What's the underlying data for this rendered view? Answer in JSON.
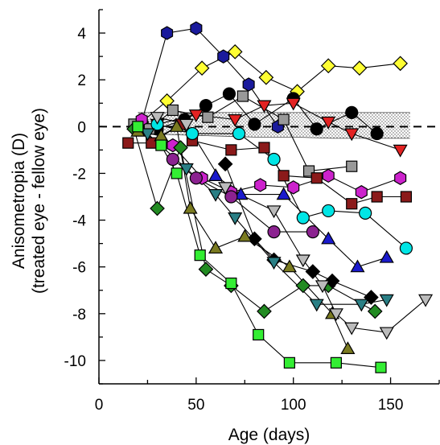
{
  "chart_data": {
    "type": "scatter",
    "title": "",
    "xlabel": "Age (days)",
    "ylabel": "Anisometropia (D)",
    "ylabel2": "(treated eye - fellow eye)",
    "xlim": [
      0,
      175
    ],
    "ylim": [
      -11,
      5
    ],
    "xticks": [
      0,
      50,
      100,
      150
    ],
    "yticks": [
      4,
      2,
      0,
      -2,
      -4,
      -6,
      -8,
      -10
    ],
    "reference_line": {
      "y": 0,
      "style": "dashed"
    },
    "shaded_band": {
      "x": [
        20,
        160
      ],
      "upper": [
        0.6,
        0.6,
        0.6,
        0.6,
        0.6,
        0.6,
        0.6,
        0.6
      ],
      "lower": [
        -0.3,
        -0.35,
        -0.4,
        -0.45,
        -0.45,
        -0.5,
        -0.5,
        -0.5
      ],
      "x_points": [
        20,
        40,
        60,
        80,
        100,
        120,
        140,
        160
      ],
      "fill": "dotted"
    },
    "grid": false,
    "legend": "none",
    "series": [
      {
        "marker": "hexagon",
        "color": "#1a1a9c",
        "x": [
          22,
          35,
          50,
          64,
          77,
          92
        ],
        "y": [
          0.2,
          4.0,
          4.2,
          3.0,
          1.8,
          0.0
        ]
      },
      {
        "marker": "diamond",
        "color": "#ffff33",
        "x": [
          22,
          35,
          53,
          70,
          86,
          102,
          118,
          134,
          155
        ],
        "y": [
          0.2,
          1.1,
          2.5,
          3.2,
          2.1,
          1.5,
          2.6,
          2.5,
          2.7
        ]
      },
      {
        "marker": "circle",
        "color": "#000000",
        "x": [
          20,
          30,
          44,
          55,
          67,
          80,
          100,
          112,
          130,
          143
        ],
        "y": [
          0.0,
          -0.1,
          0.3,
          0.9,
          1.4,
          0.1,
          1.2,
          -0.1,
          0.6,
          -0.3
        ]
      },
      {
        "marker": "square",
        "color": "#999999",
        "x": [
          18,
          26,
          38,
          56,
          74,
          95,
          108,
          130
        ],
        "y": [
          0.1,
          -0.1,
          0.7,
          0.4,
          1.3,
          0.3,
          -1.9,
          -1.7
        ]
      },
      {
        "marker": "triangle-down",
        "color": "#e32222",
        "x": [
          30,
          50,
          70,
          85,
          100,
          118,
          130,
          155
        ],
        "y": [
          0.1,
          0.5,
          0.3,
          0.9,
          1.0,
          0.2,
          -0.3,
          -1.0
        ]
      },
      {
        "marker": "square",
        "color": "#8b1a1a",
        "x": [
          15,
          27,
          42,
          48,
          68,
          85,
          95,
          112,
          130,
          143,
          158
        ],
        "y": [
          -0.7,
          -0.7,
          0.1,
          -0.6,
          -1.0,
          -0.9,
          -2.1,
          -2.2,
          -3.3,
          -3.0,
          -3.0
        ]
      },
      {
        "marker": "hexagon",
        "color": "#cc22cc",
        "x": [
          22,
          38,
          53,
          68,
          83,
          100,
          118,
          135,
          155
        ],
        "y": [
          0.3,
          -0.8,
          -2.2,
          -2.8,
          -2.5,
          -2.6,
          -2.1,
          -2.8,
          -2.2
        ]
      },
      {
        "marker": "circle",
        "color": "#00e5e5",
        "x": [
          30,
          48,
          72,
          90,
          105,
          118,
          137,
          158
        ],
        "y": [
          0.1,
          -0.3,
          -0.3,
          -1.4,
          -3.9,
          -3.6,
          -3.7,
          -5.2
        ]
      },
      {
        "marker": "triangle-up",
        "color": "#1a1acc",
        "x": [
          60,
          73,
          95,
          118,
          133,
          148
        ],
        "y": [
          -2.1,
          -2.9,
          -2.9,
          -4.8,
          -6.0,
          -5.6
        ]
      },
      {
        "marker": "circle",
        "color": "#8b2290",
        "x": [
          38,
          50,
          68,
          90,
          110
        ],
        "y": [
          -1.4,
          -2.2,
          -3.0,
          -4.5,
          -4.5
        ]
      },
      {
        "marker": "diamond",
        "color": "#228b22",
        "x": [
          18,
          30,
          42,
          55,
          68,
          85,
          105,
          118,
          142
        ],
        "y": [
          -0.1,
          -3.5,
          -0.9,
          -6.1,
          -6.8,
          -7.9,
          -6.8,
          -6.8,
          -7.9
        ]
      },
      {
        "marker": "diamond",
        "color": "#000000",
        "x": [
          65,
          80,
          90,
          110,
          120,
          140
        ],
        "y": [
          -1.6,
          -4.8,
          -5.7,
          -6.2,
          -6.6,
          -7.3
        ]
      },
      {
        "marker": "triangle-up",
        "color": "#7a7a20",
        "x": [
          20,
          32,
          40,
          47,
          60,
          75,
          98,
          120,
          128
        ],
        "y": [
          -0.2,
          -0.4,
          0.0,
          -3.5,
          -5.2,
          -4.7,
          -6.0,
          -8.0,
          -9.5
        ]
      },
      {
        "marker": "triangle-down",
        "color": "#2a7f85",
        "x": [
          25,
          45,
          60,
          70,
          90,
          112,
          135,
          148
        ],
        "y": [
          -0.3,
          -1.8,
          -2.9,
          -3.9,
          -5.8,
          -7.6,
          -7.6,
          -7.4
        ]
      },
      {
        "marker": "square",
        "color": "#33ee33",
        "x": [
          20,
          32,
          40,
          52,
          68,
          82,
          98,
          122,
          145
        ],
        "y": [
          0.0,
          -0.8,
          -2.0,
          -5.5,
          -6.7,
          -8.9,
          -10.1,
          -10.1,
          -10.3
        ]
      },
      {
        "marker": "triangle-down",
        "color": "#bbbbbb",
        "x": [
          30,
          45,
          65,
          90,
          105,
          115,
          122,
          130,
          148,
          168
        ],
        "y": [
          0.4,
          0.1,
          -2.6,
          -3.6,
          -5.7,
          -6.8,
          -8.0,
          -8.6,
          -8.8,
          -7.4
        ]
      }
    ]
  }
}
